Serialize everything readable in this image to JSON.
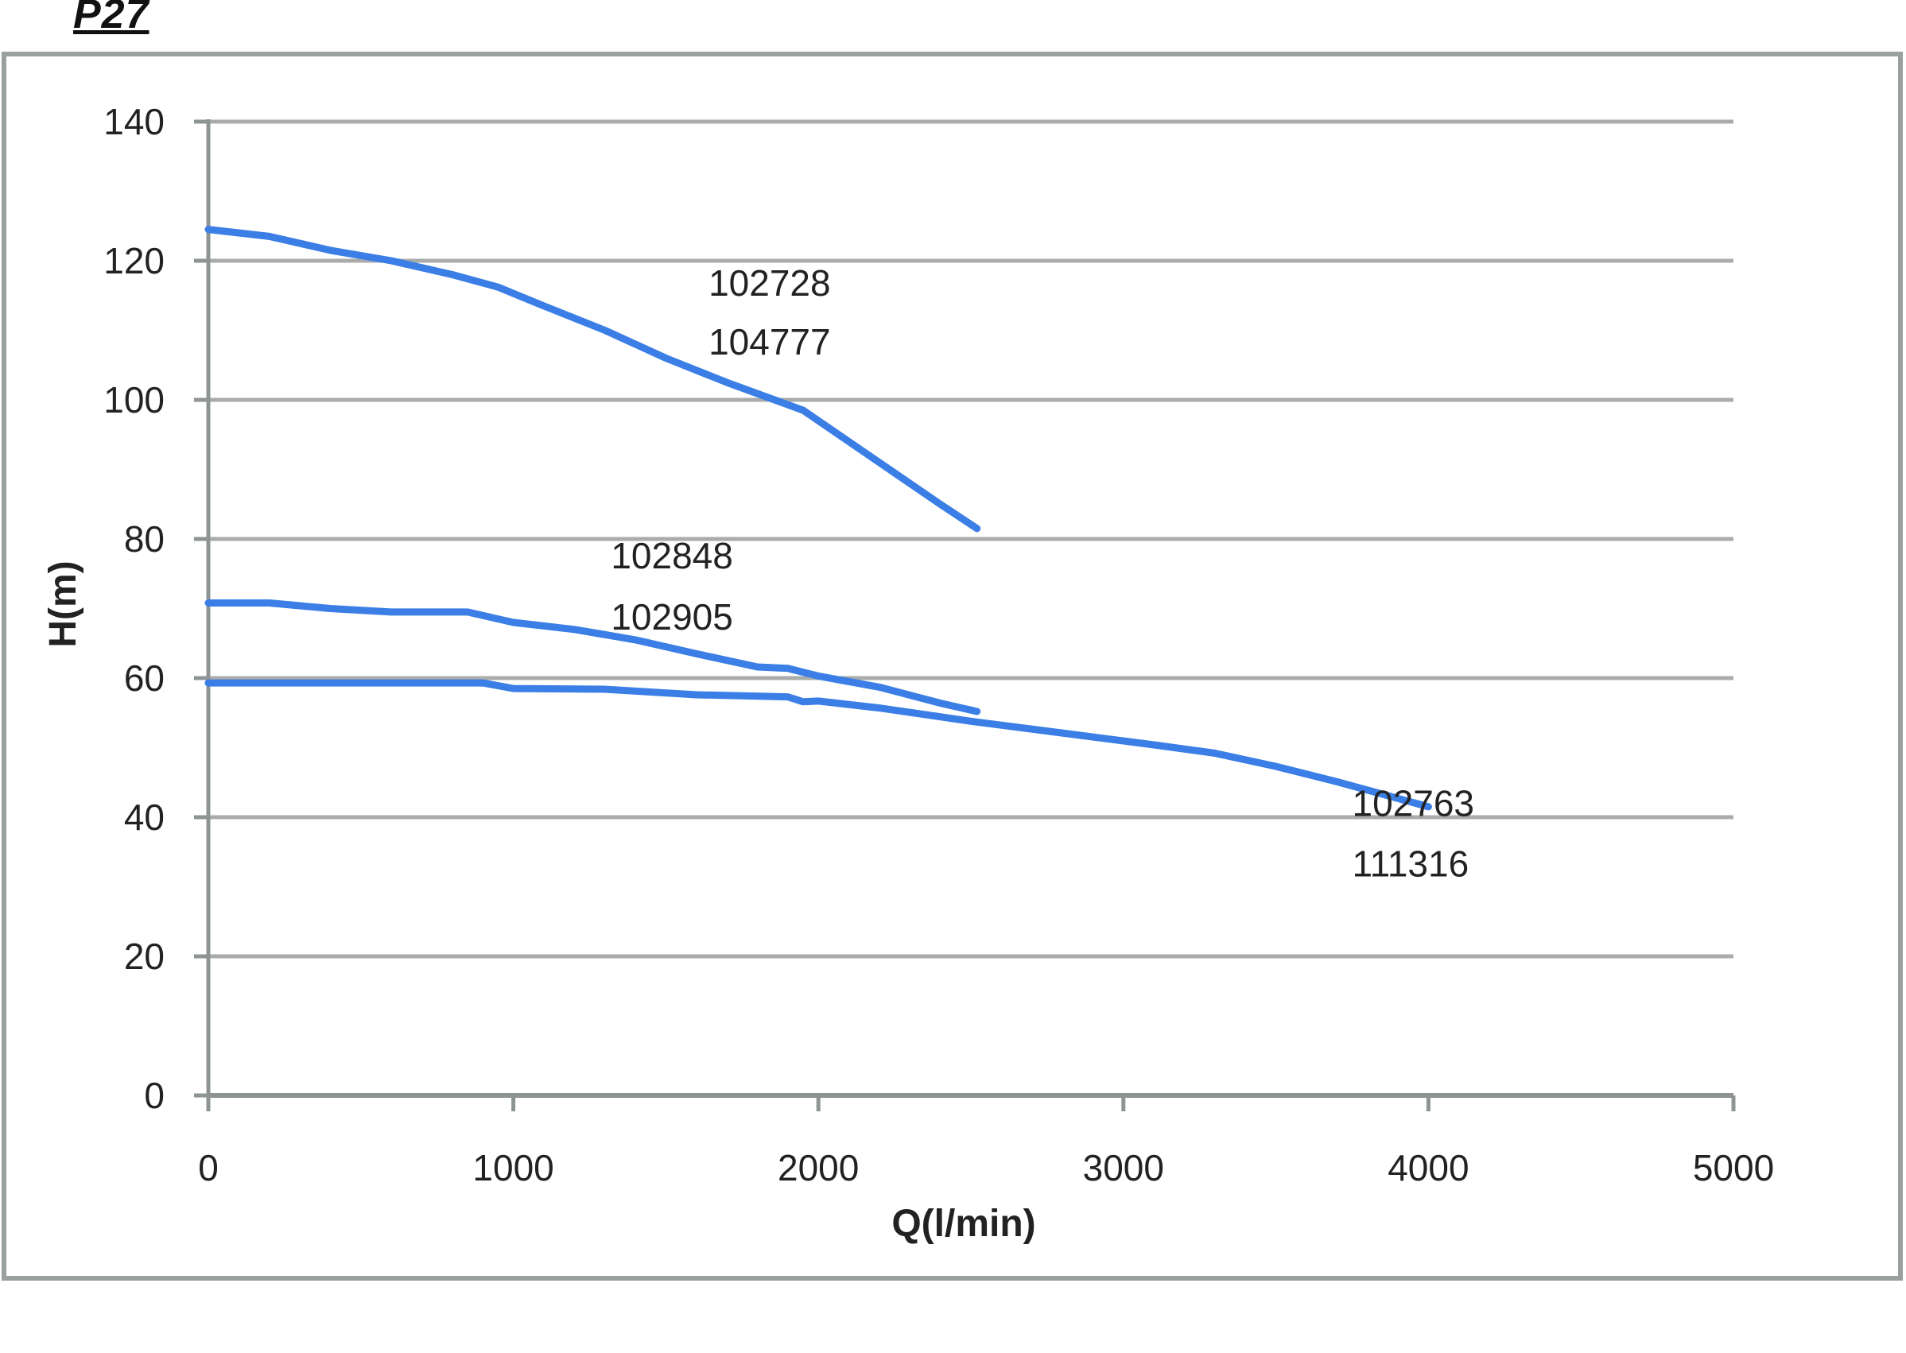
{
  "page_title": "P27",
  "chart_data": {
    "type": "line",
    "xlabel": "Q(l/min)",
    "ylabel": "H(m)",
    "xlim": [
      0,
      5000
    ],
    "ylim": [
      0,
      140
    ],
    "x_ticks": [
      0,
      1000,
      2000,
      3000,
      4000,
      5000
    ],
    "y_ticks": [
      0,
      20,
      40,
      60,
      80,
      100,
      120,
      140
    ],
    "grid": "horizontal",
    "line_color": "#3b7ee6",
    "series": [
      {
        "x": [
          0,
          200,
          400,
          600,
          800,
          950,
          1100,
          1300,
          1500,
          1700,
          1950,
          2200,
          2400,
          2520
        ],
        "y": [
          124.5,
          123.5,
          121.5,
          120,
          118,
          116.2,
          113.5,
          110,
          106,
          102.5,
          98.5,
          91,
          85,
          81.5
        ]
      },
      {
        "x": [
          0,
          200,
          400,
          600,
          850,
          1000,
          1200,
          1400,
          1600,
          1800,
          1900,
          2000,
          2200,
          2400,
          2520
        ],
        "y": [
          70.8,
          70.8,
          70,
          69.5,
          69.5,
          68,
          67,
          65.5,
          63.5,
          61.6,
          61.4,
          60.3,
          58.7,
          56.4,
          55.2
        ]
      },
      {
        "x": [
          0,
          500,
          900,
          1000,
          1300,
          1600,
          1900,
          1950,
          2000,
          2200,
          2500,
          2800,
          3100,
          3300,
          3500,
          3700,
          3850,
          4000
        ],
        "y": [
          59.3,
          59.3,
          59.3,
          58.5,
          58.4,
          57.6,
          57.3,
          56.6,
          56.7,
          55.7,
          53.8,
          52.1,
          50.4,
          49.2,
          47.3,
          45.1,
          43.3,
          41.5
        ]
      }
    ],
    "annotations": [
      {
        "x": 1640,
        "y": 115,
        "text": "102728"
      },
      {
        "x": 1640,
        "y": 106.5,
        "text": "104777"
      },
      {
        "x": 1320,
        "y": 75.8,
        "text": "102848"
      },
      {
        "x": 1320,
        "y": 67,
        "text": "102905"
      },
      {
        "x": 3750,
        "y": 40.2,
        "text": "102763"
      },
      {
        "x": 3750,
        "y": 31.5,
        "text": "111316"
      }
    ]
  }
}
